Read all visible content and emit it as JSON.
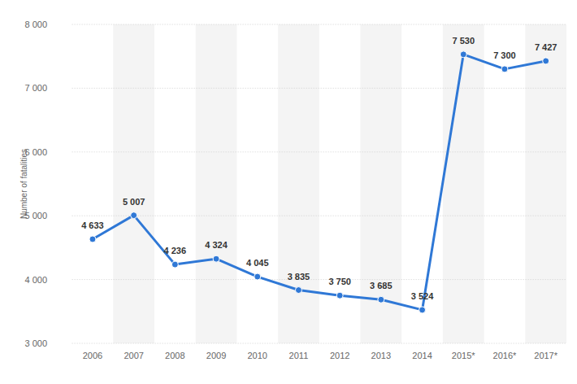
{
  "chart_data": {
    "type": "line",
    "y_label": "Number of fatalities",
    "categories": [
      "2006",
      "2007",
      "2008",
      "2009",
      "2010",
      "2011",
      "2012",
      "2013",
      "2014",
      "2015*",
      "2016*",
      "2017*"
    ],
    "values": [
      4633,
      5007,
      4236,
      4324,
      4045,
      3835,
      3750,
      3685,
      3524,
      7530,
      7300,
      7427
    ],
    "value_labels": [
      "4 633",
      "5 007",
      "4 236",
      "4 324",
      "4 045",
      "3 835",
      "3 750",
      "3 685",
      "3 524",
      "7 530",
      "7 300",
      "7 427"
    ],
    "color": "#2f78d6",
    "ylim": [
      3000,
      8000
    ],
    "yticks": [
      {
        "value": 3000,
        "label": "3 000"
      },
      {
        "value": 4000,
        "label": "4 000"
      },
      {
        "value": 5000,
        "label": "5 000"
      },
      {
        "value": 6000,
        "label": "6 000"
      },
      {
        "value": 7000,
        "label": "7 000"
      },
      {
        "value": 8000,
        "label": "8 000"
      }
    ],
    "grid": true,
    "data_labels": true,
    "marker": "circle"
  }
}
